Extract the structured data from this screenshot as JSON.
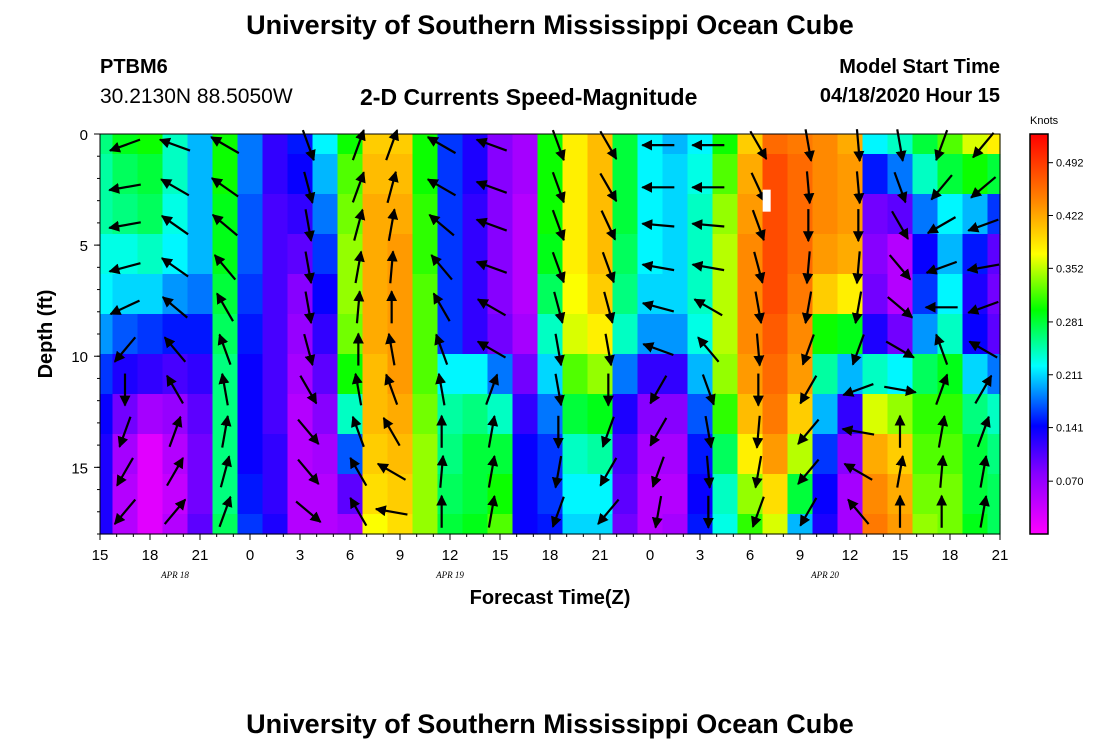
{
  "header": {
    "title": "University of Southern Mississippi Ocean Cube",
    "station_id": "PTBM6",
    "station_coords": "30.2130N 88.5050W",
    "chart_title": "2-D Currents Speed-Magnitude",
    "model_start_label": "Model Start Time",
    "model_start_value": "04/18/2020 Hour 15"
  },
  "footer": {
    "title": "University of Southern Mississippi Ocean Cube"
  },
  "chart_data": {
    "type": "heatmap",
    "title": "2-D Currents Speed-Magnitude",
    "xlabel": "Forecast Time(Z)",
    "ylabel": "Depth (ft)",
    "x_tick_labels": [
      "15",
      "18",
      "21",
      "0",
      "3",
      "6",
      "9",
      "12",
      "15",
      "18",
      "21",
      "0",
      "3",
      "6",
      "9",
      "12",
      "15",
      "18",
      "21"
    ],
    "x_hours": [
      0,
      54
    ],
    "date_labels": [
      {
        "label": "APR 18",
        "hour": 4.5
      },
      {
        "label": "APR 19",
        "hour": 21
      },
      {
        "label": "APR 20",
        "hour": 43.5
      }
    ],
    "y_ticks": [
      0,
      5,
      10,
      15
    ],
    "ylim": [
      0,
      18
    ],
    "colorbar": {
      "title": "Knots",
      "ticks": [
        "0.492",
        "0.422",
        "0.352",
        "0.281",
        "0.211",
        "0.141",
        "0.070"
      ],
      "tick_values": [
        0.492,
        0.422,
        0.352,
        0.281,
        0.211,
        0.141,
        0.07
      ],
      "range": [
        0.0,
        0.53
      ]
    },
    "depth_levels": [
      0,
      1.8,
      3.6,
      5.4,
      7.2,
      9.0,
      10.8,
      12.6,
      14.4,
      16.2,
      18
    ],
    "speed_columns": [
      {
        "hour": 0,
        "speeds": [
          0.26,
          0.25,
          0.25,
          0.23,
          0.22,
          0.19,
          0.16,
          0.14,
          0.13,
          0.13,
          0.13
        ]
      },
      {
        "hour": 1.5,
        "speeds": [
          0.29,
          0.27,
          0.26,
          0.23,
          0.21,
          0.17,
          0.13,
          0.09,
          0.06,
          0.05,
          0.05
        ]
      },
      {
        "hour": 3,
        "speeds": [
          0.3,
          0.28,
          0.27,
          0.24,
          0.21,
          0.16,
          0.12,
          0.06,
          0.02,
          0.02,
          0.02
        ]
      },
      {
        "hour": 4.5,
        "speeds": [
          0.24,
          0.24,
          0.23,
          0.22,
          0.19,
          0.15,
          0.11,
          0.07,
          0.05,
          0.04,
          0.05
        ]
      },
      {
        "hour": 6,
        "speeds": [
          0.2,
          0.2,
          0.2,
          0.2,
          0.18,
          0.15,
          0.12,
          0.1,
          0.09,
          0.09,
          0.1
        ]
      },
      {
        "hour": 7.5,
        "speeds": [
          0.3,
          0.3,
          0.29,
          0.29,
          0.28,
          0.27,
          0.26,
          0.26,
          0.26,
          0.26,
          0.27
        ]
      },
      {
        "hour": 9,
        "speeds": [
          0.18,
          0.18,
          0.17,
          0.17,
          0.16,
          0.15,
          0.14,
          0.14,
          0.14,
          0.15,
          0.16
        ]
      },
      {
        "hour": 10.5,
        "speeds": [
          0.12,
          0.12,
          0.11,
          0.11,
          0.11,
          0.11,
          0.11,
          0.11,
          0.12,
          0.12,
          0.13
        ]
      },
      {
        "hour": 12,
        "speeds": [
          0.15,
          0.14,
          0.12,
          0.1,
          0.08,
          0.07,
          0.06,
          0.05,
          0.05,
          0.05,
          0.05
        ]
      },
      {
        "hour": 13.5,
        "speeds": [
          0.22,
          0.2,
          0.18,
          0.16,
          0.14,
          0.12,
          0.1,
          0.08,
          0.06,
          0.05,
          0.05
        ]
      },
      {
        "hour": 15,
        "speeds": [
          0.3,
          0.32,
          0.33,
          0.34,
          0.34,
          0.33,
          0.3,
          0.24,
          0.17,
          0.1,
          0.06
        ]
      },
      {
        "hour": 16.5,
        "speeds": [
          0.4,
          0.41,
          0.42,
          0.42,
          0.42,
          0.42,
          0.41,
          0.41,
          0.4,
          0.39,
          0.37
        ]
      },
      {
        "hour": 18,
        "speeds": [
          0.4,
          0.41,
          0.42,
          0.43,
          0.43,
          0.43,
          0.43,
          0.42,
          0.41,
          0.4,
          0.39
        ]
      },
      {
        "hour": 19.5,
        "speeds": [
          0.3,
          0.3,
          0.31,
          0.31,
          0.32,
          0.32,
          0.32,
          0.33,
          0.34,
          0.34,
          0.34
        ]
      },
      {
        "hour": 21,
        "speeds": [
          0.16,
          0.16,
          0.16,
          0.16,
          0.16,
          0.16,
          0.22,
          0.25,
          0.26,
          0.27,
          0.28
        ]
      },
      {
        "hour": 22.5,
        "speeds": [
          0.13,
          0.13,
          0.12,
          0.12,
          0.12,
          0.12,
          0.22,
          0.26,
          0.28,
          0.28,
          0.29
        ]
      },
      {
        "hour": 24,
        "speeds": [
          0.08,
          0.08,
          0.08,
          0.08,
          0.08,
          0.09,
          0.18,
          0.24,
          0.28,
          0.3,
          0.32
        ]
      },
      {
        "hour": 25.5,
        "speeds": [
          0.06,
          0.06,
          0.05,
          0.05,
          0.05,
          0.06,
          0.09,
          0.12,
          0.14,
          0.14,
          0.14
        ]
      },
      {
        "hour": 27,
        "speeds": [
          0.3,
          0.3,
          0.3,
          0.29,
          0.27,
          0.24,
          0.21,
          0.18,
          0.16,
          0.16,
          0.15
        ]
      },
      {
        "hour": 28.5,
        "speeds": [
          0.38,
          0.38,
          0.38,
          0.38,
          0.37,
          0.36,
          0.32,
          0.28,
          0.24,
          0.22,
          0.21
        ]
      },
      {
        "hour": 30,
        "speeds": [
          0.41,
          0.41,
          0.41,
          0.41,
          0.4,
          0.38,
          0.34,
          0.29,
          0.25,
          0.22,
          0.21
        ]
      },
      {
        "hour": 31.5,
        "speeds": [
          0.28,
          0.28,
          0.28,
          0.27,
          0.26,
          0.24,
          0.18,
          0.13,
          0.11,
          0.1,
          0.09
        ]
      },
      {
        "hour": 33,
        "speeds": [
          0.22,
          0.22,
          0.22,
          0.22,
          0.21,
          0.19,
          0.12,
          0.08,
          0.06,
          0.05,
          0.05
        ]
      },
      {
        "hour": 34.5,
        "speeds": [
          0.2,
          0.21,
          0.21,
          0.21,
          0.21,
          0.19,
          0.12,
          0.08,
          0.06,
          0.05,
          0.06
        ]
      },
      {
        "hour": 36,
        "speeds": [
          0.22,
          0.23,
          0.24,
          0.24,
          0.24,
          0.23,
          0.2,
          0.17,
          0.15,
          0.14,
          0.15
        ]
      },
      {
        "hour": 37.5,
        "speeds": [
          0.3,
          0.32,
          0.34,
          0.35,
          0.35,
          0.35,
          0.34,
          0.31,
          0.27,
          0.24,
          0.23
        ]
      },
      {
        "hour": 39,
        "speeds": [
          0.4,
          0.42,
          0.43,
          0.44,
          0.44,
          0.44,
          0.43,
          0.41,
          0.38,
          0.34,
          0.31
        ]
      },
      {
        "hour": 40.5,
        "speeds": [
          0.46,
          0.48,
          0.48,
          0.48,
          0.48,
          0.47,
          0.46,
          0.45,
          0.43,
          0.39,
          0.36
        ]
      },
      {
        "hour": 42,
        "speeds": [
          0.45,
          0.46,
          0.46,
          0.46,
          0.45,
          0.44,
          0.43,
          0.4,
          0.35,
          0.28,
          0.2
        ]
      },
      {
        "hour": 43.5,
        "speeds": [
          0.44,
          0.44,
          0.44,
          0.43,
          0.4,
          0.3,
          0.25,
          0.2,
          0.16,
          0.14,
          0.13
        ]
      },
      {
        "hour": 45,
        "speeds": [
          0.42,
          0.43,
          0.43,
          0.42,
          0.38,
          0.29,
          0.2,
          0.12,
          0.08,
          0.06,
          0.06
        ]
      },
      {
        "hour": 46.5,
        "speeds": [
          0.22,
          0.15,
          0.09,
          0.08,
          0.09,
          0.13,
          0.24,
          0.36,
          0.42,
          0.44,
          0.45
        ]
      },
      {
        "hour": 48,
        "speeds": [
          0.24,
          0.18,
          0.1,
          0.05,
          0.05,
          0.09,
          0.22,
          0.34,
          0.4,
          0.42,
          0.43
        ]
      },
      {
        "hour": 49.5,
        "speeds": [
          0.28,
          0.24,
          0.18,
          0.14,
          0.16,
          0.19,
          0.27,
          0.31,
          0.32,
          0.33,
          0.34
        ]
      },
      {
        "hour": 51,
        "speeds": [
          0.32,
          0.28,
          0.22,
          0.2,
          0.22,
          0.24,
          0.29,
          0.31,
          0.32,
          0.33,
          0.33
        ]
      },
      {
        "hour": 52.5,
        "speeds": [
          0.36,
          0.3,
          0.2,
          0.15,
          0.13,
          0.14,
          0.21,
          0.26,
          0.28,
          0.28,
          0.29
        ]
      },
      {
        "hour": 54,
        "speeds": [
          0.38,
          0.28,
          0.16,
          0.1,
          0.09,
          0.1,
          0.18,
          0.24,
          0.26,
          0.27,
          0.27
        ]
      }
    ],
    "vector_depths": [
      0.5,
      2.4,
      4.1,
      6.0,
      7.8,
      9.7,
      11.5,
      13.4,
      15.2,
      17.0
    ],
    "vector_columns": [
      {
        "hour": 1.5,
        "directions_deg": [
          250,
          260,
          260,
          255,
          245,
          220,
          180,
          200,
          210,
          220
        ]
      },
      {
        "hour": 4.5,
        "directions_deg": [
          290,
          300,
          305,
          305,
          310,
          320,
          330,
          20,
          30,
          40
        ]
      },
      {
        "hour": 7.5,
        "directions_deg": [
          300,
          305,
          310,
          320,
          330,
          340,
          350,
          10,
          15,
          20
        ]
      },
      {
        "hour": 12.5,
        "directions_deg": [
          160,
          165,
          170,
          170,
          170,
          165,
          150,
          140,
          140,
          130
        ]
      },
      {
        "hour": 15.5,
        "directions_deg": [
          20,
          20,
          15,
          10,
          5,
          0,
          350,
          340,
          330,
          330
        ]
      },
      {
        "hour": 17.5,
        "directions_deg": [
          20,
          15,
          10,
          5,
          0,
          350,
          340,
          330,
          300,
          280
        ]
      },
      {
        "hour": 20.5,
        "directions_deg": [
          300,
          300,
          310,
          320,
          330,
          340,
          350,
          0,
          5,
          0
        ]
      },
      {
        "hour": 23.5,
        "directions_deg": [
          290,
          290,
          290,
          290,
          300,
          300,
          20,
          10,
          10,
          10
        ]
      },
      {
        "hour": 27.5,
        "directions_deg": [
          160,
          160,
          160,
          160,
          165,
          170,
          170,
          180,
          190,
          200
        ]
      },
      {
        "hour": 30.5,
        "directions_deg": [
          150,
          150,
          155,
          160,
          165,
          170,
          180,
          200,
          210,
          220
        ]
      },
      {
        "hour": 33.5,
        "directions_deg": [
          270,
          270,
          275,
          280,
          285,
          290,
          210,
          210,
          200,
          190
        ]
      },
      {
        "hour": 36.5,
        "directions_deg": [
          270,
          270,
          275,
          280,
          300,
          320,
          160,
          170,
          175,
          180
        ]
      },
      {
        "hour": 39.5,
        "directions_deg": [
          150,
          155,
          160,
          165,
          170,
          175,
          180,
          185,
          190,
          200
        ]
      },
      {
        "hour": 42.5,
        "directions_deg": [
          170,
          175,
          180,
          185,
          190,
          200,
          210,
          220,
          220,
          210
        ]
      },
      {
        "hour": 45.5,
        "directions_deg": [
          175,
          175,
          180,
          185,
          190,
          200,
          250,
          280,
          300,
          320
        ]
      },
      {
        "hour": 48,
        "directions_deg": [
          170,
          160,
          150,
          140,
          130,
          120,
          100,
          0,
          10,
          0
        ]
      },
      {
        "hour": 50.5,
        "directions_deg": [
          200,
          220,
          240,
          250,
          270,
          340,
          20,
          10,
          5,
          0
        ]
      },
      {
        "hour": 53,
        "directions_deg": [
          220,
          230,
          250,
          260,
          250,
          300,
          30,
          20,
          10,
          10
        ]
      }
    ],
    "cursor_marker": {
      "hour": 40.0,
      "depth": 3.0
    }
  }
}
